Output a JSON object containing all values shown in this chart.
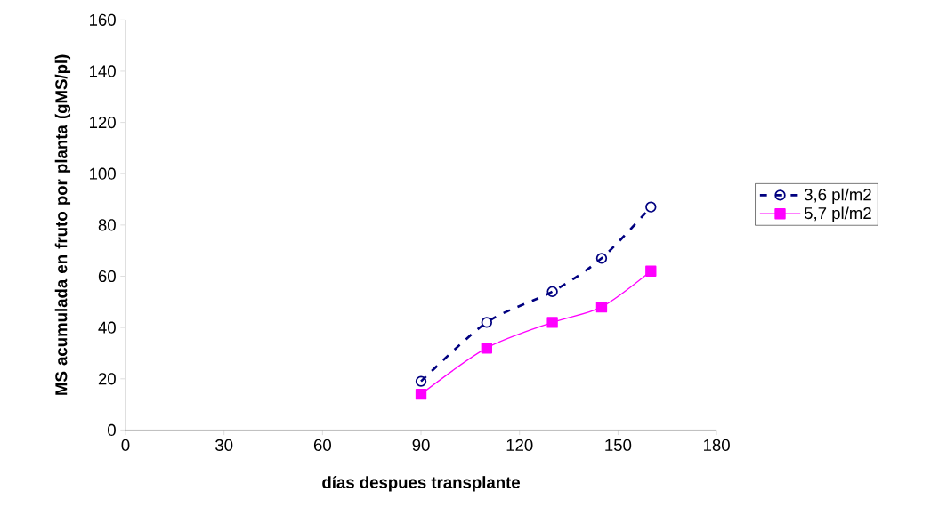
{
  "chart_data": {
    "type": "line",
    "xlabel": "días despues transplante",
    "ylabel": "MS acumulada en fruto por planta (gMS/pl)",
    "x": [
      90,
      110,
      130,
      145,
      160
    ],
    "series": [
      {
        "name": "3,6 pl/m2",
        "color": "#000080",
        "values": [
          19,
          42,
          54,
          67,
          87
        ],
        "marker": "circle",
        "line_style": "dashed"
      },
      {
        "name": "5,7 pl/m2",
        "color": "#ff00ff",
        "values": [
          14,
          32,
          42,
          48,
          62
        ],
        "marker": "square",
        "line_style": "solid"
      }
    ],
    "xlim": [
      0,
      180
    ],
    "xticks": [
      0,
      30,
      60,
      90,
      120,
      150,
      180
    ],
    "ylim": [
      0,
      160
    ],
    "yticks": [
      0,
      20,
      40,
      60,
      80,
      100,
      120,
      140,
      160
    ],
    "grid": false,
    "legend": "right"
  }
}
